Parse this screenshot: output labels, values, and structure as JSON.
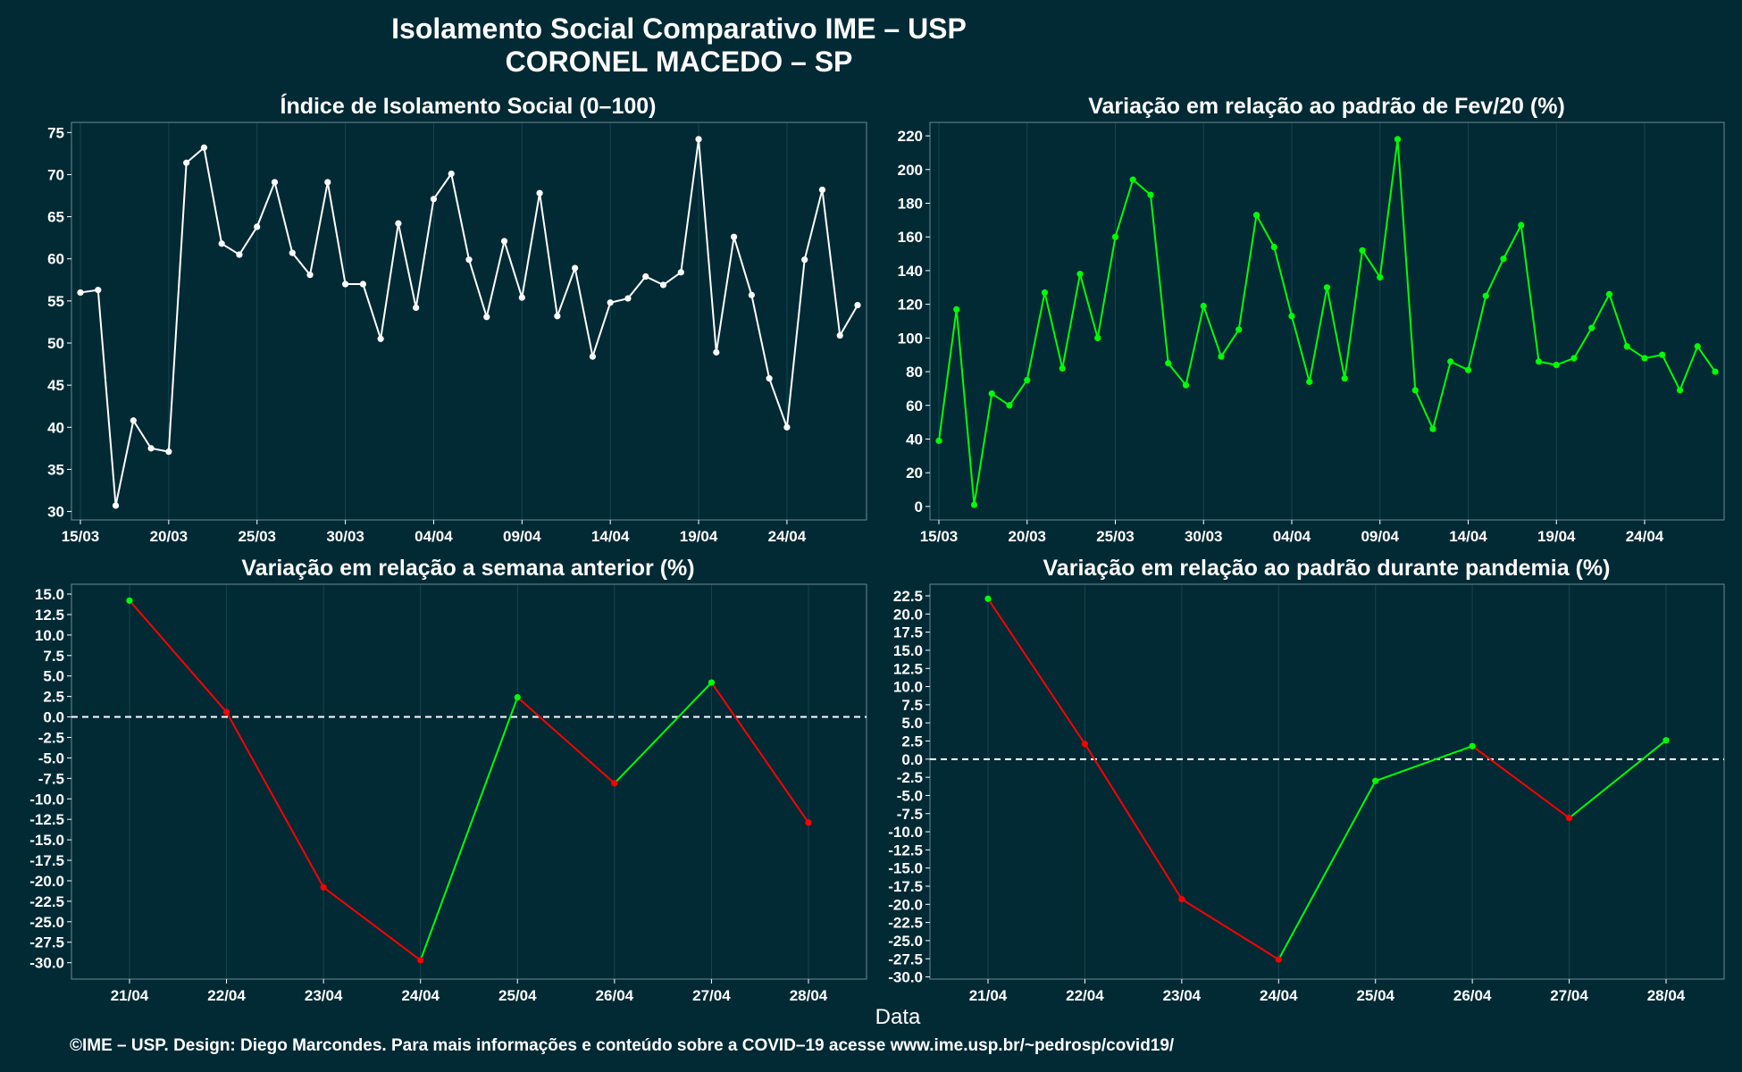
{
  "title_line1": "Isolamento Social Comparativo IME – USP",
  "title_line2": "CORONEL MACEDO – SP",
  "xlabel": "Data",
  "footer": "©IME – USP. Design: Diego Marcondes. Para mais informações e conteúdo sobre a COVID–19 acesse www.ime.usp.br/~pedrosp/covid19/",
  "colors": {
    "background": "#022a35",
    "white": "#ffffff",
    "green": "#00ff00",
    "red": "#ff0000",
    "grid": "#15444f"
  },
  "chart_data": [
    {
      "type": "line",
      "title": "Índice de Isolamento Social (0–100)",
      "line_color": "#ffffff",
      "x_dates": [
        "15/03",
        "16/03",
        "17/03",
        "18/03",
        "19/03",
        "20/03",
        "21/03",
        "22/03",
        "23/03",
        "24/03",
        "25/03",
        "26/03",
        "27/03",
        "28/03",
        "29/03",
        "30/03",
        "31/03",
        "01/04",
        "02/04",
        "03/04",
        "04/04",
        "05/04",
        "06/04",
        "07/04",
        "08/04",
        "09/04",
        "10/04",
        "11/04",
        "12/04",
        "13/04",
        "14/04",
        "15/04",
        "16/04",
        "17/04",
        "18/04",
        "19/04",
        "20/04",
        "21/04",
        "22/04",
        "23/04",
        "24/04",
        "25/04",
        "26/04",
        "27/04",
        "28/04"
      ],
      "x_ticks": [
        "15/03",
        "20/03",
        "25/03",
        "30/03",
        "04/04",
        "09/04",
        "14/04",
        "19/04",
        "24/04"
      ],
      "values": [
        56.0,
        56.3,
        30.7,
        40.8,
        37.5,
        37.1,
        71.4,
        73.2,
        61.8,
        60.5,
        63.8,
        69.1,
        60.7,
        58.1,
        69.1,
        57.0,
        57.0,
        50.5,
        64.2,
        54.2,
        67.1,
        70.1,
        59.9,
        53.1,
        62.1,
        55.4,
        67.8,
        53.2,
        58.9,
        48.4,
        54.8,
        55.3,
        57.9,
        56.9,
        58.4,
        74.2,
        48.9,
        62.6,
        55.7,
        45.8,
        40.0,
        59.9,
        68.2,
        50.9,
        54.5
      ],
      "ylim": [
        29,
        76.2
      ],
      "y_ticks": [
        30,
        35,
        40,
        45,
        50,
        55,
        60,
        65,
        70,
        75
      ]
    },
    {
      "type": "line",
      "title": "Variação em relação ao padrão de Fev/20 (%)",
      "line_color": "#00ff00",
      "x_dates": [
        "15/03",
        "16/03",
        "17/03",
        "18/03",
        "19/03",
        "20/03",
        "21/03",
        "22/03",
        "23/03",
        "24/03",
        "25/03",
        "26/03",
        "27/03",
        "28/03",
        "29/03",
        "30/03",
        "31/03",
        "01/04",
        "02/04",
        "03/04",
        "04/04",
        "05/04",
        "06/04",
        "07/04",
        "08/04",
        "09/04",
        "10/04",
        "11/04",
        "12/04",
        "13/04",
        "14/04",
        "15/04",
        "16/04",
        "17/04",
        "18/04",
        "19/04",
        "20/04",
        "21/04",
        "22/04",
        "23/04",
        "24/04",
        "25/04",
        "26/04",
        "27/04",
        "28/04"
      ],
      "x_ticks": [
        "15/03",
        "20/03",
        "25/03",
        "30/03",
        "04/04",
        "09/04",
        "14/04",
        "19/04",
        "24/04"
      ],
      "values": [
        39,
        117,
        1,
        67,
        60,
        75,
        127,
        82,
        138,
        100,
        160,
        194,
        185,
        85,
        72,
        119,
        89,
        105,
        173,
        154,
        113,
        74,
        130,
        76,
        152,
        136,
        218,
        69,
        46,
        86,
        81,
        125,
        147,
        167,
        86,
        84,
        88,
        106,
        126,
        95,
        88,
        90,
        69,
        95,
        80
      ],
      "ylim": [
        -8,
        228
      ],
      "y_ticks": [
        0,
        20,
        40,
        60,
        80,
        100,
        120,
        140,
        160,
        180,
        200,
        220
      ]
    },
    {
      "type": "line",
      "title": "Variação em relação a semana anterior (%)",
      "segment_colors": {
        "up": "#00ff00",
        "down": "#ff0000"
      },
      "categories": [
        "21/04",
        "22/04",
        "23/04",
        "24/04",
        "25/04",
        "26/04",
        "27/04",
        "28/04"
      ],
      "values": [
        14.2,
        0.6,
        -20.8,
        -29.7,
        2.4,
        -8.1,
        4.2,
        -12.9
      ],
      "ylim": [
        -32,
        16.2
      ],
      "y_ticks": [
        15.0,
        12.5,
        10.0,
        7.5,
        5.0,
        2.5,
        0.0,
        -2.5,
        -5.0,
        -7.5,
        -10.0,
        -12.5,
        -15.0,
        -17.5,
        -20.0,
        -22.5,
        -25.0,
        -27.5,
        -30.0
      ],
      "reference_line": 0
    },
    {
      "type": "line",
      "title": "Variação em relação ao padrão durante pandemia (%)",
      "segment_colors": {
        "up": "#00ff00",
        "down": "#ff0000"
      },
      "categories": [
        "21/04",
        "22/04",
        "23/04",
        "24/04",
        "25/04",
        "26/04",
        "27/04",
        "28/04"
      ],
      "values": [
        22.1,
        2.1,
        -19.3,
        -27.6,
        -3.0,
        1.8,
        -8.1,
        2.6
      ],
      "ylim": [
        -30.3,
        24.1
      ],
      "y_ticks": [
        22.5,
        20.0,
        17.5,
        15.0,
        12.5,
        10.0,
        7.5,
        5.0,
        2.5,
        0.0,
        -2.5,
        -5.0,
        -7.5,
        -10.0,
        -12.5,
        -15.0,
        -17.5,
        -20.0,
        -22.5,
        -25.0,
        -27.5,
        -30.0
      ],
      "reference_line": 0
    }
  ]
}
